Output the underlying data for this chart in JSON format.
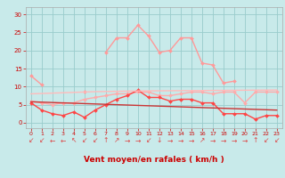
{
  "x": [
    0,
    1,
    2,
    3,
    4,
    5,
    6,
    7,
    8,
    9,
    10,
    11,
    12,
    13,
    14,
    15,
    16,
    17,
    18,
    19,
    20,
    21,
    22,
    23
  ],
  "series": [
    {
      "name": "rafales_peak",
      "color": "#ff9999",
      "linewidth": 1.0,
      "marker": "D",
      "markersize": 2.0,
      "values": [
        13,
        10.5,
        null,
        null,
        null,
        8.5,
        null,
        19.5,
        23.5,
        23.5,
        27.0,
        24.0,
        19.5,
        20.0,
        23.5,
        23.5,
        16.5,
        16.0,
        11.0,
        11.5,
        null,
        null,
        null,
        null
      ]
    },
    {
      "name": "rafales_mid",
      "color": "#ffaaaa",
      "linewidth": 1.0,
      "marker": "D",
      "markersize": 2.0,
      "values": [
        6.0,
        5.5,
        5.0,
        5.5,
        5.5,
        6.5,
        7.0,
        7.5,
        8.0,
        8.0,
        8.5,
        8.5,
        7.5,
        7.5,
        8.0,
        8.5,
        8.5,
        8.0,
        8.5,
        8.5,
        5.5,
        8.5,
        8.5,
        8.5
      ]
    },
    {
      "name": "vent_moyen",
      "color": "#ff4444",
      "linewidth": 1.0,
      "marker": "D",
      "markersize": 2.0,
      "values": [
        5.5,
        3.5,
        2.5,
        2.0,
        3.0,
        1.5,
        3.5,
        5.0,
        6.5,
        7.5,
        9.0,
        7.0,
        7.0,
        6.0,
        6.5,
        6.5,
        5.5,
        5.5,
        2.5,
        2.5,
        2.5,
        1.0,
        2.0,
        2.0
      ]
    },
    {
      "name": "trend_high",
      "color": "#ffbbbb",
      "linewidth": 1.0,
      "marker": null,
      "markersize": 0,
      "values": [
        8.0,
        8.1,
        8.2,
        8.3,
        8.4,
        8.5,
        8.6,
        8.65,
        8.7,
        8.75,
        8.8,
        8.82,
        8.84,
        8.86,
        8.88,
        8.9,
        8.92,
        8.94,
        8.96,
        8.98,
        9.0,
        9.02,
        9.04,
        9.06
      ]
    },
    {
      "name": "trend_low",
      "color": "#cc3333",
      "linewidth": 1.0,
      "marker": null,
      "markersize": 0,
      "values": [
        5.8,
        5.7,
        5.6,
        5.5,
        5.4,
        5.3,
        5.2,
        5.1,
        5.0,
        4.9,
        4.8,
        4.7,
        4.6,
        4.5,
        4.4,
        4.3,
        4.2,
        4.1,
        4.0,
        3.9,
        3.8,
        3.7,
        3.6,
        3.5
      ]
    }
  ],
  "wind_symbols": [
    "↙",
    "↙",
    "←",
    "←",
    "↖",
    "↙",
    "↙",
    "↑",
    "↗",
    "→",
    "→",
    "↙",
    "↓",
    "→",
    "→",
    "→",
    "↗",
    "→",
    "→",
    "→",
    "→",
    "↑",
    "↙",
    "↙"
  ],
  "xlabel": "Vent moyen/en rafales ( km/h )",
  "xlim": [
    -0.5,
    23.5
  ],
  "ylim": [
    -1.5,
    32
  ],
  "yticks": [
    0,
    5,
    10,
    15,
    20,
    25,
    30
  ],
  "xticks": [
    0,
    1,
    2,
    3,
    4,
    5,
    6,
    7,
    8,
    9,
    10,
    11,
    12,
    13,
    14,
    15,
    16,
    17,
    18,
    19,
    20,
    21,
    22,
    23
  ],
  "background_color": "#c8eaea",
  "grid_color": "#99cccc",
  "tick_color": "#cc0000",
  "label_color": "#cc0000",
  "symbol_color": "#dd4444"
}
